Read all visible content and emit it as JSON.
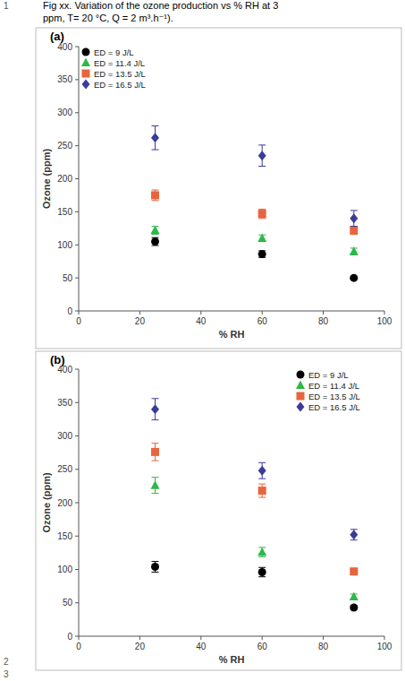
{
  "caption": [
    "Fig xx. Variation of the ozone production vs % RH at 3",
    "ppm, T= 20 °C, Q = 2 m³.h⁻¹)."
  ],
  "line_numbers": [
    "1",
    "2",
    "3"
  ],
  "chart_data": [
    {
      "type": "scatter",
      "title": "(a)",
      "x_label": "% RH",
      "y_label": "Ozone (ppm)",
      "xlim": [
        0,
        100
      ],
      "ylim": [
        0,
        400
      ],
      "xticks": [
        0,
        20,
        40,
        60,
        80,
        100
      ],
      "yticks": [
        0,
        50,
        100,
        150,
        200,
        250,
        300,
        350,
        400
      ],
      "grid": false,
      "legend": "top-left",
      "series": [
        {
          "name": "ED = 9 J/L",
          "color": "#000000",
          "marker": "circle",
          "x": [
            25,
            60,
            90
          ],
          "values": [
            105,
            86,
            50
          ],
          "errors": [
            6,
            5,
            2
          ]
        },
        {
          "name": "ED = 11.4 J/L",
          "color": "#2db84a",
          "marker": "triangle",
          "x": [
            25,
            60,
            90
          ],
          "values": [
            122,
            110,
            90
          ],
          "errors": [
            6,
            5,
            5
          ]
        },
        {
          "name": "ED = 13.5 J/L",
          "color": "#e8643c",
          "marker": "square",
          "x": [
            25,
            60,
            90
          ],
          "values": [
            175,
            147,
            122
          ],
          "errors": [
            8,
            7,
            6
          ]
        },
        {
          "name": "ED = 16.5 J/L",
          "color": "#3b3b9a",
          "marker": "diamond",
          "x": [
            25,
            60,
            90
          ],
          "values": [
            262,
            235,
            140
          ],
          "errors": [
            18,
            16,
            12
          ]
        }
      ]
    },
    {
      "type": "scatter",
      "title": "(b)",
      "x_label": "% RH",
      "y_label": "Ozone (ppm)",
      "xlim": [
        0,
        100
      ],
      "ylim": [
        0,
        400
      ],
      "xticks": [
        0,
        20,
        40,
        60,
        80,
        100
      ],
      "yticks": [
        0,
        50,
        100,
        150,
        200,
        250,
        300,
        350,
        400
      ],
      "grid": false,
      "legend": "top-right",
      "series": [
        {
          "name": "ED = 9 J/L",
          "color": "#000000",
          "marker": "circle",
          "x": [
            25,
            60,
            90
          ],
          "values": [
            104,
            96,
            43
          ],
          "errors": [
            8,
            7,
            3
          ]
        },
        {
          "name": "ED = 11.4 J/L",
          "color": "#2db84a",
          "marker": "triangle",
          "x": [
            25,
            60,
            90
          ],
          "values": [
            226,
            126,
            59
          ],
          "errors": [
            12,
            7,
            4
          ]
        },
        {
          "name": "ED = 13.5 J/L",
          "color": "#e8643c",
          "marker": "square",
          "x": [
            25,
            60,
            90
          ],
          "values": [
            276,
            218,
            97
          ],
          "errors": [
            13,
            10,
            4
          ]
        },
        {
          "name": "ED = 16.5 J/L",
          "color": "#3b3b9a",
          "marker": "diamond",
          "x": [
            25,
            60,
            90
          ],
          "values": [
            340,
            248,
            152
          ],
          "errors": [
            16,
            12,
            8
          ]
        }
      ]
    }
  ]
}
